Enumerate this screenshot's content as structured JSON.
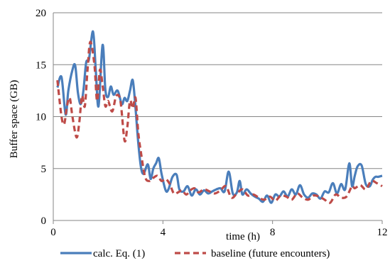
{
  "chart_data": {
    "type": "line",
    "xlabel": "time (h)",
    "ylabel": "Buffer space (GB)",
    "xlim": [
      0,
      12
    ],
    "ylim": [
      0,
      20
    ],
    "xticks": [
      0,
      4,
      8,
      12
    ],
    "yticks": [
      0,
      5,
      10,
      15,
      20
    ],
    "grid": "horizontal",
    "legend": "bottom",
    "series": [
      {
        "name": "calc. Eq. (1)",
        "color": "#4a7ebb",
        "style": "solid",
        "x": [
          0.15,
          0.3,
          0.45,
          0.55,
          0.7,
          0.8,
          0.9,
          1.0,
          1.1,
          1.2,
          1.3,
          1.45,
          1.55,
          1.65,
          1.8,
          1.9,
          2.0,
          2.1,
          2.2,
          2.35,
          2.5,
          2.6,
          2.7,
          2.8,
          2.9,
          3.0,
          3.1,
          3.2,
          3.3,
          3.45,
          3.55,
          3.65,
          3.75,
          3.85,
          3.95,
          4.1,
          4.2,
          4.35,
          4.5,
          4.6,
          4.75,
          4.9,
          5.05,
          5.2,
          5.35,
          5.5,
          5.65,
          5.8,
          5.95,
          6.1,
          6.25,
          6.4,
          6.55,
          6.7,
          6.8,
          6.9,
          7.05,
          7.2,
          7.35,
          7.5,
          7.65,
          7.8,
          7.95,
          8.1,
          8.25,
          8.4,
          8.55,
          8.7,
          8.85,
          9.0,
          9.15,
          9.3,
          9.45,
          9.6,
          9.75,
          9.9,
          10.05,
          10.2,
          10.35,
          10.5,
          10.65,
          10.8,
          10.9,
          11.0,
          11.1,
          11.25,
          11.4,
          11.55,
          11.65,
          11.75,
          11.85,
          12.0
        ],
        "values": [
          12.8,
          13.8,
          10.2,
          12.5,
          14.5,
          14.9,
          12.3,
          11.2,
          12.5,
          15.2,
          15.5,
          18.2,
          14.5,
          11.0,
          16.9,
          12.6,
          11.9,
          12.9,
          12.1,
          12.5,
          11.2,
          11.8,
          11.5,
          12.5,
          13.5,
          10.8,
          7.5,
          5.1,
          4.5,
          5.4,
          4.0,
          5.0,
          5.5,
          6.0,
          4.5,
          2.9,
          3.0,
          4.2,
          4.4,
          3.0,
          2.8,
          3.3,
          2.4,
          3.0,
          2.5,
          2.9,
          2.6,
          2.8,
          3.0,
          3.1,
          2.8,
          4.7,
          2.6,
          2.7,
          3.8,
          2.5,
          3.0,
          2.6,
          2.3,
          2.1,
          1.8,
          2.4,
          1.7,
          2.5,
          2.3,
          2.8,
          2.3,
          3.0,
          2.5,
          3.4,
          2.5,
          2.2,
          2.6,
          2.5,
          2.1,
          2.8,
          2.7,
          3.6,
          2.6,
          3.5,
          3.0,
          5.5,
          3.3,
          4.3,
          5.2,
          5.3,
          3.5,
          3.3,
          3.9,
          4.2,
          4.2,
          4.3
        ]
      },
      {
        "name": "baseline (future encounters)",
        "color": "#be4b48",
        "style": "dashed",
        "x": [
          0.15,
          0.3,
          0.4,
          0.5,
          0.6,
          0.7,
          0.85,
          0.95,
          1.05,
          1.15,
          1.25,
          1.35,
          1.5,
          1.6,
          1.7,
          1.8,
          1.9,
          2.0,
          2.15,
          2.3,
          2.45,
          2.6,
          2.7,
          2.8,
          2.9,
          3.0,
          3.1,
          3.2,
          3.35,
          3.5,
          3.65,
          3.8,
          3.95,
          4.1,
          4.25,
          4.4,
          4.55,
          4.7,
          4.85,
          5.0,
          5.15,
          5.3,
          5.5,
          5.7,
          5.9,
          6.1,
          6.3,
          6.5,
          6.7,
          6.9,
          7.1,
          7.3,
          7.5,
          7.7,
          7.9,
          8.1,
          8.3,
          8.5,
          8.7,
          8.9,
          9.1,
          9.3,
          9.5,
          9.7,
          9.9,
          10.1,
          10.3,
          10.5,
          10.7,
          10.9,
          11.0,
          11.2,
          11.4,
          11.6,
          11.8,
          12.0
        ],
        "values": [
          13.5,
          10.0,
          9.3,
          11.0,
          11.8,
          10.0,
          8.0,
          9.5,
          12.0,
          11.0,
          14.5,
          17.2,
          15.0,
          11.5,
          14.5,
          13.0,
          11.0,
          11.5,
          10.5,
          12.0,
          11.5,
          7.7,
          9.0,
          11.5,
          10.8,
          11.8,
          8.5,
          6.5,
          4.2,
          3.8,
          4.1,
          4.3,
          3.8,
          4.0,
          3.5,
          2.6,
          2.7,
          2.9,
          2.5,
          2.9,
          3.1,
          2.7,
          3.0,
          2.8,
          2.6,
          2.9,
          3.3,
          2.2,
          2.6,
          3.0,
          2.4,
          2.5,
          2.2,
          2.0,
          2.3,
          1.9,
          2.4,
          2.3,
          2.0,
          2.6,
          2.2,
          2.0,
          2.4,
          2.3,
          2.0,
          1.7,
          2.5,
          2.2,
          2.3,
          3.3,
          3.1,
          3.4,
          3.0,
          3.8,
          3.6,
          3.3
        ]
      }
    ]
  }
}
